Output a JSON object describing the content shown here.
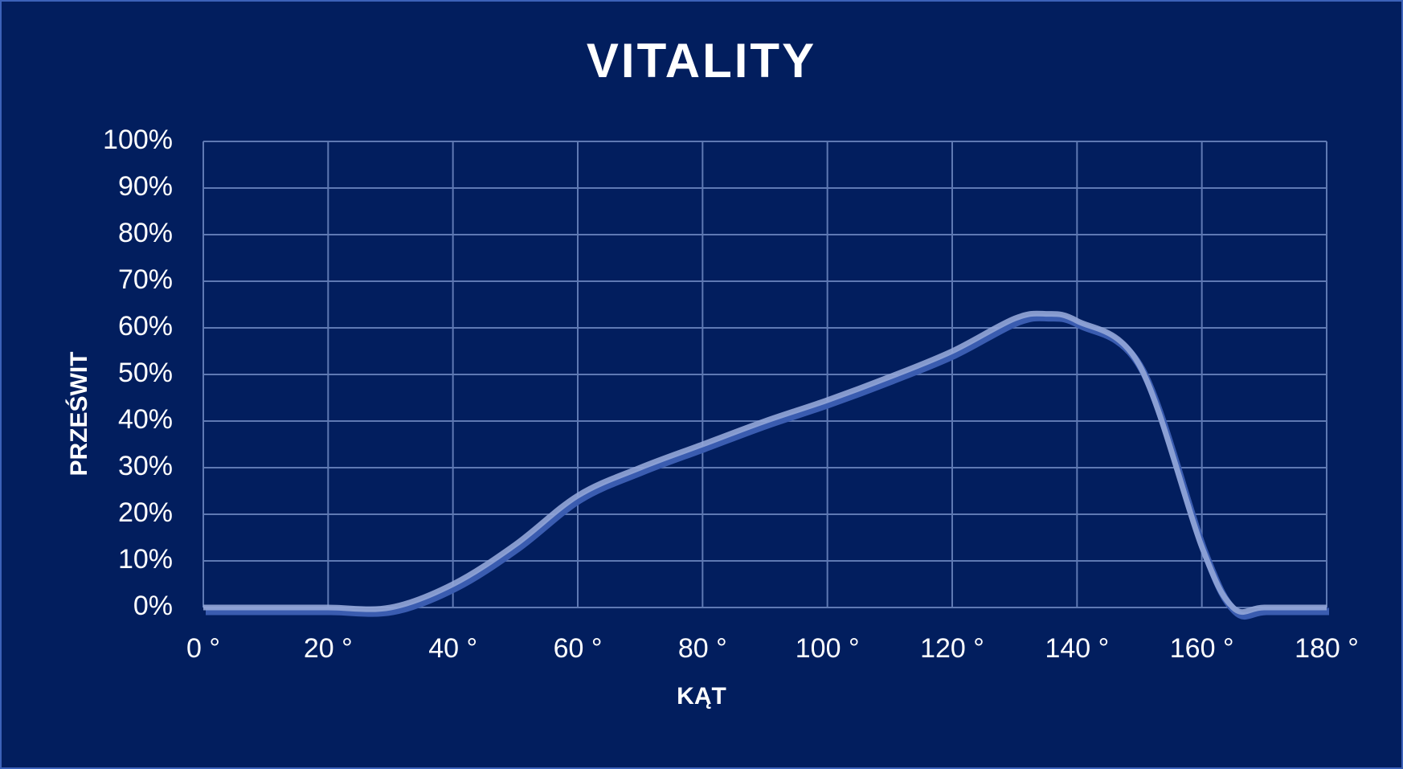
{
  "chart_data": {
    "type": "line",
    "title": "VITALITY",
    "x_label": "KĄT",
    "y_label": "PRZEŚWIT",
    "x": [
      0,
      10,
      20,
      30,
      40,
      50,
      60,
      70,
      80,
      90,
      100,
      110,
      120,
      130,
      135,
      140,
      150,
      160,
      165,
      170,
      180
    ],
    "series": [
      {
        "name": "Vitality",
        "color": "#93a6d8",
        "values": [
          0,
          0,
          0,
          0,
          5,
          13.5,
          24,
          30,
          35,
          40,
          44.5,
          49.5,
          55,
          62,
          63,
          61.5,
          52,
          13,
          0,
          0,
          0
        ]
      }
    ],
    "xlim": [
      0,
      180
    ],
    "xticks": [
      {
        "value": 0,
        "label": "0 °"
      },
      {
        "value": 20,
        "label": "20 °"
      },
      {
        "value": 40,
        "label": "40 °"
      },
      {
        "value": 60,
        "label": "60 °"
      },
      {
        "value": 80,
        "label": "80 °"
      },
      {
        "value": 100,
        "label": "100 °"
      },
      {
        "value": 120,
        "label": "120 °"
      },
      {
        "value": 140,
        "label": "140 °"
      },
      {
        "value": 160,
        "label": "160 °"
      },
      {
        "value": 180,
        "label": "180 °"
      }
    ],
    "ylim": [
      0,
      100
    ],
    "yticks": [
      {
        "value": 0,
        "label": "0%"
      },
      {
        "value": 10,
        "label": "10%"
      },
      {
        "value": 20,
        "label": "20%"
      },
      {
        "value": 30,
        "label": "30%"
      },
      {
        "value": 40,
        "label": "40%"
      },
      {
        "value": 50,
        "label": "50%"
      },
      {
        "value": 60,
        "label": "60%"
      },
      {
        "value": 70,
        "label": "70%"
      },
      {
        "value": 80,
        "label": "80%"
      },
      {
        "value": 90,
        "label": "90%"
      },
      {
        "value": 100,
        "label": "100%"
      }
    ],
    "grid": true
  }
}
